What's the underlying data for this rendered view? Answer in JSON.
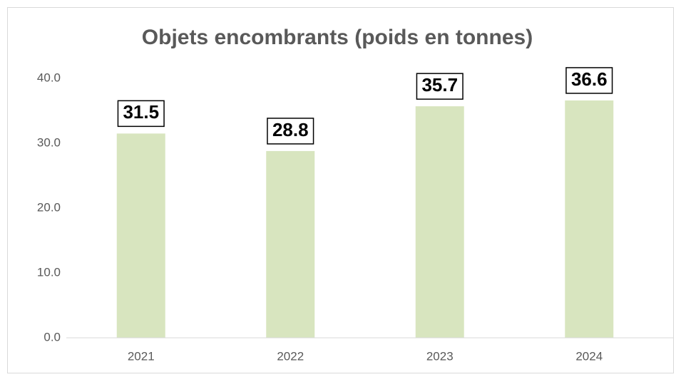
{
  "chart_data": {
    "type": "bar",
    "title": "Objets encombrants (poids en tonnes)",
    "categories": [
      "2021",
      "2022",
      "2023",
      "2024"
    ],
    "values": [
      31.5,
      28.8,
      35.7,
      36.6
    ],
    "color": "#d8e5bf",
    "ylim": [
      0,
      40
    ],
    "yticks": [
      {
        "value": 0,
        "label": "0.0"
      },
      {
        "value": 10,
        "label": "10.0"
      },
      {
        "value": 20,
        "label": "20.0"
      },
      {
        "value": 30,
        "label": "30.0"
      },
      {
        "value": 40,
        "label": "40.0"
      }
    ],
    "grid": false
  }
}
